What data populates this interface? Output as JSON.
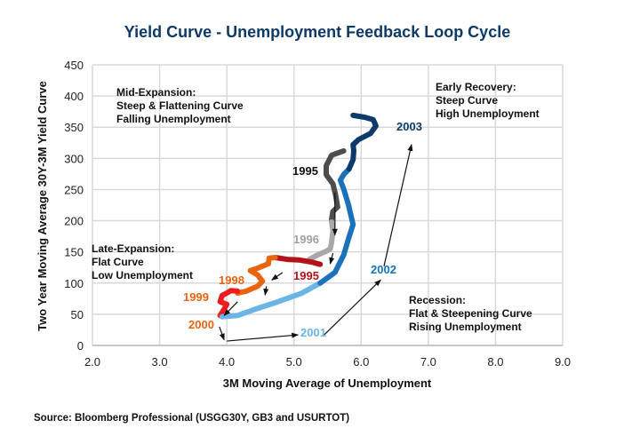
{
  "chart_data": {
    "type": "line",
    "title": "Yield Curve - Unemployment Feedback Loop Cycle",
    "xlabel": "3M Moving Average of Unemployment",
    "ylabel": "Two Year Moving Average 30Y-3M Yield Curve",
    "xlim": [
      2.0,
      9.0
    ],
    "ylim": [
      0,
      450
    ],
    "xticks": [
      "2.0",
      "3.0",
      "4.0",
      "5.0",
      "6.0",
      "7.0",
      "8.0",
      "9.0"
    ],
    "yticks": [
      "0",
      "50",
      "100",
      "150",
      "200",
      "250",
      "300",
      "350",
      "400",
      "450"
    ],
    "grid": true,
    "series": [
      {
        "name": "1995",
        "color": "#4d4d4d",
        "points": [
          [
            5.74,
            312
          ],
          [
            5.56,
            305
          ],
          [
            5.48,
            288
          ],
          [
            5.48,
            274
          ],
          [
            5.58,
            259
          ],
          [
            5.62,
            241
          ],
          [
            5.65,
            222
          ],
          [
            5.58,
            215
          ],
          [
            5.56,
            202
          ],
          [
            5.56,
            198
          ]
        ]
      },
      {
        "name": "1996",
        "color": "#a8a8a8",
        "points": [
          [
            5.56,
            198
          ],
          [
            5.58,
            184
          ],
          [
            5.56,
            165
          ],
          [
            5.54,
            155
          ],
          [
            5.48,
            151
          ],
          [
            5.35,
            145
          ],
          [
            5.23,
            138
          ]
        ]
      },
      {
        "name": "1995 (late)",
        "color": "#b3121a",
        "points": [
          [
            4.72,
            141
          ],
          [
            4.9,
            138
          ],
          [
            5.08,
            137
          ],
          [
            5.25,
            134
          ],
          [
            5.39,
            130
          ]
        ]
      },
      {
        "name": "1998",
        "color": "#e8650f",
        "points": [
          [
            4.72,
            141
          ],
          [
            4.63,
            140
          ],
          [
            4.62,
            131
          ],
          [
            4.46,
            124
          ],
          [
            4.35,
            120
          ],
          [
            4.46,
            113
          ],
          [
            4.53,
            103
          ],
          [
            4.46,
            95
          ],
          [
            4.29,
            87
          ],
          [
            4.16,
            84
          ]
        ]
      },
      {
        "name": "1999-2000",
        "color": "#ee1c1c",
        "points": [
          [
            4.16,
            87
          ],
          [
            4.06,
            88
          ],
          [
            4.0,
            84
          ],
          [
            3.93,
            80
          ],
          [
            3.9,
            70
          ],
          [
            4.0,
            66
          ],
          [
            3.96,
            58
          ],
          [
            3.9,
            48
          ]
        ]
      },
      {
        "name": "2001",
        "color": "#6ab4e6",
        "points": [
          [
            3.93,
            46
          ],
          [
            4.16,
            48
          ],
          [
            4.42,
            58
          ],
          [
            4.76,
            70
          ],
          [
            5.12,
            84
          ],
          [
            5.39,
            100
          ]
        ]
      },
      {
        "name": "2002",
        "color": "#1a73ba",
        "points": [
          [
            5.39,
            100
          ],
          [
            5.61,
            117
          ],
          [
            5.74,
            145
          ],
          [
            5.82,
            174
          ],
          [
            5.88,
            194
          ],
          [
            5.81,
            226
          ],
          [
            5.74,
            251
          ],
          [
            5.69,
            265
          ],
          [
            5.74,
            274
          ],
          [
            5.82,
            283
          ]
        ]
      },
      {
        "name": "2003",
        "color": "#0b3a6b",
        "points": [
          [
            5.82,
            283
          ],
          [
            5.88,
            298
          ],
          [
            5.89,
            312
          ],
          [
            5.88,
            322
          ],
          [
            5.96,
            330
          ],
          [
            6.14,
            340
          ],
          [
            6.22,
            352
          ],
          [
            6.18,
            362
          ],
          [
            6.05,
            366
          ],
          [
            5.88,
            369
          ]
        ]
      }
    ],
    "arrows": [
      [
        [
          5.61,
          245
        ],
        [
          5.61,
          177
        ]
      ],
      [
        [
          5.58,
          148
        ],
        [
          5.54,
          131
        ]
      ],
      [
        [
          4.83,
          117
        ],
        [
          4.67,
          105
        ]
      ],
      [
        [
          4.59,
          95
        ],
        [
          4.57,
          81
        ]
      ],
      [
        [
          4.16,
          70
        ],
        [
          3.96,
          48
        ]
      ],
      [
        [
          3.89,
          30
        ],
        [
          3.96,
          9
        ]
      ],
      [
        [
          4.0,
          7
        ],
        [
          5.06,
          17
        ]
      ],
      [
        [
          5.45,
          17
        ],
        [
          6.29,
          105
        ]
      ],
      [
        [
          6.34,
          127
        ],
        [
          6.75,
          322
        ]
      ]
    ],
    "year_labels": [
      {
        "text": "1995",
        "color": "#111111"
      },
      {
        "text": "1996",
        "color": "#a0a0a0"
      },
      {
        "text": "1995",
        "color": "#b3121a"
      },
      {
        "text": "1998",
        "color": "#e8650f"
      },
      {
        "text": "1999",
        "color": "#e8650f"
      },
      {
        "text": "2000",
        "color": "#e8650f"
      },
      {
        "text": "2001",
        "color": "#6ab4e6"
      },
      {
        "text": "2002",
        "color": "#1a73ba"
      },
      {
        "text": "2003",
        "color": "#0b3a6b"
      }
    ],
    "annotations": {
      "mid_expansion": [
        "Mid-Expansion:",
        "Steep & Flattening Curve",
        "Falling Unemployment"
      ],
      "early_recovery": [
        "Early Recovery:",
        "Steep Curve",
        "High Unemployment"
      ],
      "late_expansion": [
        "Late-Expansion:",
        "Flat Curve",
        "Low Unemployment"
      ],
      "recession": [
        "Recession:",
        "Flat & Steepening Curve",
        "Rising Unemployment"
      ]
    }
  },
  "source": "Source: Bloomberg Professional (USGG30Y, GB3 and USURTOT)"
}
